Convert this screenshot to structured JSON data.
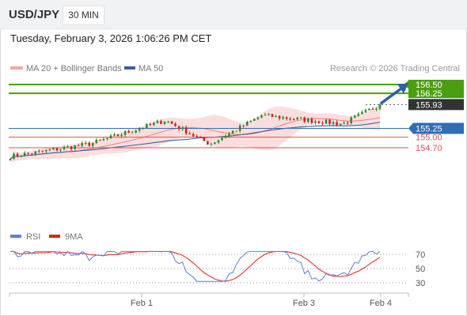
{
  "header": {
    "symbol": "USD/JPY",
    "timeframe": "30 MIN"
  },
  "datetime": "Tuesday, February 3, 2026 1:06:26 PM CET",
  "legend": {
    "bollinger_label": "MA 20 + Bollinger Bands",
    "ma50_label": "MA 50",
    "credit": "Research © 2026 Trading Central"
  },
  "colors": {
    "bull": "#2e8b2e",
    "bear": "#cc2222",
    "bollinger_band": "#f5b5b5",
    "ma20": "#f08080",
    "ma50": "#3a5fa0",
    "target_line": "#4a9e0f",
    "pivot_line": "#2f6db5",
    "support_line": "#d9534f",
    "arrow": "#2f5fa8",
    "rsi": "#5b7fd6",
    "rsi_ma": "#e02020"
  },
  "chart_data": [
    {
      "type": "candlestick",
      "title": "USD/JPY",
      "timeframe": "30 MIN",
      "x_ticks": [
        "Feb 1",
        "Feb 3",
        "Feb 4"
      ],
      "ylim": [
        154.25,
        157.0
      ],
      "levels": [
        {
          "value": 156.5,
          "label": "156.50",
          "kind": "resistance"
        },
        {
          "value": 156.25,
          "label": "156.25",
          "kind": "resistance"
        },
        {
          "value": 155.93,
          "label": "155.93",
          "kind": "last"
        },
        {
          "value": 155.25,
          "label": "155.25",
          "kind": "pivot"
        },
        {
          "value": 155.0,
          "label": "155.00",
          "kind": "support"
        },
        {
          "value": 154.7,
          "label": "154.70",
          "kind": "support"
        }
      ],
      "key_points": [
        {
          "name": "start",
          "price": 154.45
        },
        {
          "name": "first-high",
          "price": 154.82
        },
        {
          "name": "mid-rally-high",
          "price": 155.48
        },
        {
          "name": "dip-low",
          "price": 154.8
        },
        {
          "name": "second-high",
          "price": 155.62
        },
        {
          "name": "consolidation",
          "price": 155.38
        },
        {
          "name": "last",
          "price": 155.93
        }
      ],
      "series": [
        {
          "name": "MA 20 + Bollinger Bands"
        },
        {
          "name": "MA 50"
        }
      ]
    },
    {
      "type": "line",
      "title": "RSI",
      "series": [
        {
          "name": "RSI"
        },
        {
          "name": "9MA"
        }
      ],
      "y_ticks": [
        70,
        50,
        30
      ],
      "ylim": [
        20,
        80
      ],
      "x_ticks": [
        "Feb 1",
        "Feb 3",
        "Feb 4"
      ]
    }
  ]
}
